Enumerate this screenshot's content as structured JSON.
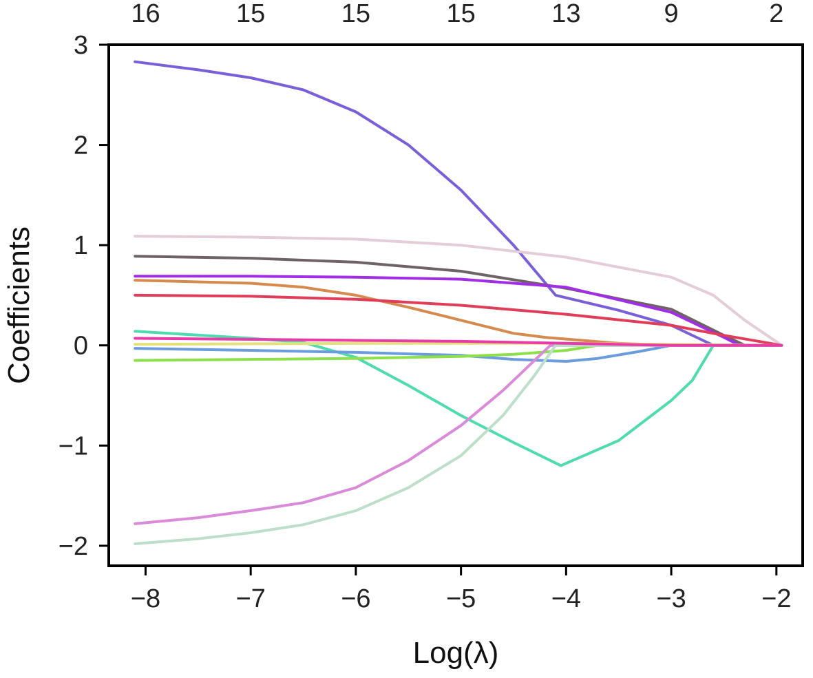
{
  "chart_data": {
    "type": "line",
    "title": "",
    "xlabel": "Log(λ)",
    "ylabel": "Coefficients",
    "xlim": [
      -8.35,
      -1.75
    ],
    "ylim": [
      -2.2,
      3.0
    ],
    "x_ticks": [
      {
        "value": -8,
        "label": "−8"
      },
      {
        "value": -7,
        "label": "−7"
      },
      {
        "value": -6,
        "label": "−6"
      },
      {
        "value": -5,
        "label": "−5"
      },
      {
        "value": -4,
        "label": "−4"
      },
      {
        "value": -3,
        "label": "−3"
      },
      {
        "value": -2,
        "label": "−2"
      }
    ],
    "y_ticks": [
      {
        "value": 3,
        "label": "3"
      },
      {
        "value": 2,
        "label": "2"
      },
      {
        "value": 1,
        "label": "1"
      },
      {
        "value": 0,
        "label": "0"
      },
      {
        "value": -1,
        "label": "−1"
      },
      {
        "value": -2,
        "label": "−2"
      }
    ],
    "top_ticks": [
      {
        "value": -8,
        "label": "16"
      },
      {
        "value": -7,
        "label": "15"
      },
      {
        "value": -6,
        "label": "15"
      },
      {
        "value": -5,
        "label": "15"
      },
      {
        "value": -4,
        "label": "13"
      },
      {
        "value": -3,
        "label": "9"
      },
      {
        "value": -2,
        "label": "2"
      }
    ],
    "grid": false,
    "series": [
      {
        "color": "#7b5fd9",
        "points": [
          [
            -8.1,
            2.83
          ],
          [
            -7.5,
            2.75
          ],
          [
            -7.0,
            2.67
          ],
          [
            -6.5,
            2.55
          ],
          [
            -6.0,
            2.33
          ],
          [
            -5.5,
            2.0
          ],
          [
            -5.0,
            1.55
          ],
          [
            -4.5,
            1.0
          ],
          [
            -4.1,
            0.5
          ],
          [
            -3.5,
            0.35
          ],
          [
            -3.0,
            0.2
          ],
          [
            -2.6,
            0.0
          ],
          [
            -1.95,
            0.0
          ]
        ]
      },
      {
        "color": "#e4cdd8",
        "points": [
          [
            -8.1,
            1.09
          ],
          [
            -7.0,
            1.08
          ],
          [
            -6.0,
            1.06
          ],
          [
            -5.0,
            1.0
          ],
          [
            -4.0,
            0.88
          ],
          [
            -3.0,
            0.68
          ],
          [
            -2.6,
            0.5
          ],
          [
            -2.3,
            0.25
          ],
          [
            -1.95,
            0.0
          ]
        ]
      },
      {
        "color": "#6e6265",
        "points": [
          [
            -8.1,
            0.89
          ],
          [
            -7.0,
            0.87
          ],
          [
            -6.0,
            0.83
          ],
          [
            -5.0,
            0.74
          ],
          [
            -4.0,
            0.57
          ],
          [
            -3.0,
            0.36
          ],
          [
            -2.5,
            0.1
          ],
          [
            -2.3,
            0.0
          ],
          [
            -1.95,
            0.0
          ]
        ]
      },
      {
        "color": "#a12ee6",
        "points": [
          [
            -8.1,
            0.69
          ],
          [
            -7.0,
            0.69
          ],
          [
            -6.0,
            0.68
          ],
          [
            -5.0,
            0.66
          ],
          [
            -4.0,
            0.58
          ],
          [
            -3.0,
            0.33
          ],
          [
            -2.5,
            0.08
          ],
          [
            -2.35,
            0.0
          ],
          [
            -1.95,
            0.0
          ]
        ]
      },
      {
        "color": "#d68a4e",
        "points": [
          [
            -8.1,
            0.65
          ],
          [
            -7.0,
            0.62
          ],
          [
            -6.5,
            0.58
          ],
          [
            -6.0,
            0.5
          ],
          [
            -5.5,
            0.38
          ],
          [
            -5.0,
            0.25
          ],
          [
            -4.5,
            0.12
          ],
          [
            -4.2,
            0.08
          ],
          [
            -3.5,
            0.02
          ],
          [
            -3.0,
            0.0
          ],
          [
            -1.95,
            0.0
          ]
        ]
      },
      {
        "color": "#e03d58",
        "points": [
          [
            -8.1,
            0.5
          ],
          [
            -7.0,
            0.49
          ],
          [
            -6.0,
            0.46
          ],
          [
            -5.0,
            0.4
          ],
          [
            -4.0,
            0.31
          ],
          [
            -3.0,
            0.2
          ],
          [
            -2.5,
            0.1
          ],
          [
            -1.95,
            0.0
          ]
        ]
      },
      {
        "color": "#4fdbaf",
        "points": [
          [
            -8.1,
            0.14
          ],
          [
            -7.0,
            0.07
          ],
          [
            -6.5,
            0.03
          ],
          [
            -6.0,
            -0.12
          ],
          [
            -5.5,
            -0.4
          ],
          [
            -5.0,
            -0.7
          ],
          [
            -4.5,
            -0.97
          ],
          [
            -4.05,
            -1.2
          ],
          [
            -3.5,
            -0.95
          ],
          [
            -3.0,
            -0.55
          ],
          [
            -2.8,
            -0.35
          ],
          [
            -2.6,
            0.0
          ],
          [
            -1.95,
            0.0
          ]
        ]
      },
      {
        "color": "#6a9cde",
        "points": [
          [
            -8.1,
            -0.03
          ],
          [
            -7.0,
            -0.05
          ],
          [
            -6.0,
            -0.07
          ],
          [
            -5.0,
            -0.1
          ],
          [
            -4.5,
            -0.14
          ],
          [
            -4.0,
            -0.16
          ],
          [
            -3.7,
            -0.13
          ],
          [
            -3.3,
            -0.06
          ],
          [
            -3.0,
            0.0
          ],
          [
            -1.95,
            0.0
          ]
        ]
      },
      {
        "color": "#8de04a",
        "points": [
          [
            -8.1,
            -0.15
          ],
          [
            -7.0,
            -0.14
          ],
          [
            -6.0,
            -0.13
          ],
          [
            -5.0,
            -0.11
          ],
          [
            -4.5,
            -0.09
          ],
          [
            -4.0,
            -0.05
          ],
          [
            -3.7,
            0.0
          ],
          [
            -1.95,
            0.0
          ]
        ]
      },
      {
        "color": "#e6e07a",
        "points": [
          [
            -8.1,
            0.01
          ],
          [
            -6.0,
            0.02
          ],
          [
            -4.0,
            0.02
          ],
          [
            -3.0,
            0.01
          ],
          [
            -1.95,
            0.0
          ]
        ]
      },
      {
        "color": "#d98ad8",
        "points": [
          [
            -8.1,
            -1.78
          ],
          [
            -7.5,
            -1.72
          ],
          [
            -7.0,
            -1.65
          ],
          [
            -6.5,
            -1.57
          ],
          [
            -6.0,
            -1.42
          ],
          [
            -5.5,
            -1.15
          ],
          [
            -5.0,
            -0.8
          ],
          [
            -4.6,
            -0.45
          ],
          [
            -4.3,
            -0.15
          ],
          [
            -4.15,
            0.0
          ],
          [
            -1.95,
            0.0
          ]
        ]
      },
      {
        "color": "#bddfca",
        "points": [
          [
            -8.1,
            -1.98
          ],
          [
            -7.5,
            -1.93
          ],
          [
            -7.0,
            -1.87
          ],
          [
            -6.5,
            -1.79
          ],
          [
            -6.0,
            -1.65
          ],
          [
            -5.5,
            -1.42
          ],
          [
            -5.0,
            -1.1
          ],
          [
            -4.6,
            -0.7
          ],
          [
            -4.3,
            -0.3
          ],
          [
            -4.1,
            0.0
          ],
          [
            -1.95,
            0.0
          ]
        ]
      },
      {
        "color": "#e83aa8",
        "points": [
          [
            -8.1,
            0.07
          ],
          [
            -7.0,
            0.06
          ],
          [
            -6.0,
            0.05
          ],
          [
            -5.0,
            0.04
          ],
          [
            -4.0,
            0.02
          ],
          [
            -3.0,
            0.0
          ],
          [
            -1.95,
            0.0
          ]
        ]
      }
    ]
  }
}
